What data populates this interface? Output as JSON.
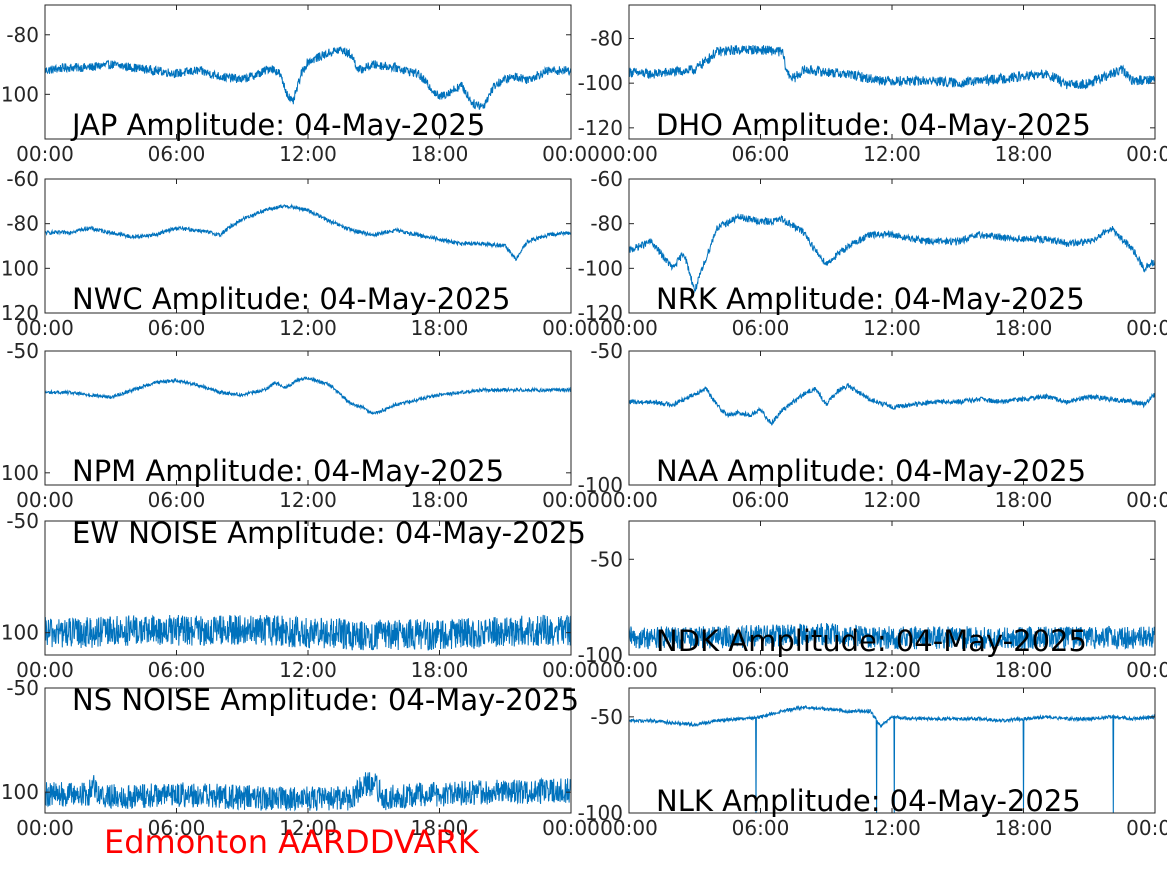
{
  "footer": "Edmonton AARDDVARK",
  "colors": {
    "line": "#0072bd",
    "axes": "#262626",
    "text": "#000000",
    "footer": "#ff0000"
  },
  "chart_data": [
    {
      "type": "line",
      "station": "JAP",
      "title": "JAP Amplitude: 04-May-2025",
      "xlim": [
        0,
        24
      ],
      "x_unit": "hours UTC",
      "xticks": [
        "00:00",
        "06:00",
        "12:00",
        "18:00",
        "00:00"
      ],
      "ylim": [
        -115,
        -70
      ],
      "yticks": [
        -80,
        -100
      ],
      "ytick_labels": [
        "-80",
        "-100"
      ],
      "series": [
        {
          "x": [
            0,
            1,
            2,
            3,
            4,
            5,
            6,
            7,
            8,
            9,
            9.8,
            10.3,
            10.7,
            11,
            11.3,
            11.7,
            12,
            13,
            13.5,
            14,
            14.3,
            15,
            16,
            17,
            17.5,
            18,
            18.5,
            19,
            19.5,
            20,
            20.5,
            21,
            21.5,
            22,
            23,
            24
          ],
          "y": [
            -92,
            -91,
            -91,
            -90,
            -91,
            -92,
            -93,
            -92,
            -94,
            -95,
            -93,
            -91,
            -93,
            -99,
            -103,
            -93,
            -89,
            -86,
            -85,
            -87,
            -92,
            -90,
            -91,
            -93,
            -97,
            -101,
            -99,
            -97,
            -103,
            -104,
            -97,
            -95,
            -94,
            -95,
            -92,
            -92
          ],
          "noise": 1.5
        }
      ]
    },
    {
      "type": "line",
      "station": "DHO",
      "title": "DHO Amplitude: 04-May-2025",
      "xlim": [
        0,
        24
      ],
      "x_unit": "hours UTC",
      "xticks": [
        "00:00",
        "06:00",
        "12:00",
        "18:00",
        "00:00"
      ],
      "ylim": [
        -125,
        -65
      ],
      "yticks": [
        -80,
        -100,
        -120
      ],
      "ytick_labels": [
        "-80",
        "-100",
        "-120"
      ],
      "series": [
        {
          "x": [
            0,
            1,
            2,
            3,
            3.5,
            4,
            5,
            6,
            7,
            7.2,
            7.5,
            8,
            9,
            10,
            11,
            12,
            13,
            14,
            15,
            16,
            17,
            18,
            19,
            19.5,
            20,
            21,
            22,
            22.5,
            23,
            24
          ],
          "y": [
            -95,
            -96,
            -95,
            -94,
            -90,
            -86,
            -85,
            -85,
            -86,
            -95,
            -98,
            -94,
            -95,
            -96,
            -98,
            -99,
            -99,
            -99,
            -100,
            -99,
            -98,
            -97,
            -96,
            -98,
            -101,
            -100,
            -96,
            -94,
            -99,
            -98
          ],
          "noise": 2.2
        }
      ]
    },
    {
      "type": "line",
      "station": "NWC",
      "title": "NWC Amplitude: 04-May-2025",
      "xlim": [
        0,
        24
      ],
      "x_unit": "hours UTC",
      "xticks": [
        "00:00",
        "06:00",
        "12:00",
        "18:00",
        "00:00"
      ],
      "ylim": [
        -120,
        -60
      ],
      "yticks": [
        -60,
        -80,
        -100,
        -120
      ],
      "ytick_labels": [
        "-60",
        "-80",
        "-100",
        "-120"
      ],
      "series": [
        {
          "x": [
            0,
            1,
            2,
            3,
            4,
            5,
            6,
            7,
            8,
            8.5,
            9,
            10,
            11,
            12,
            13,
            14,
            15,
            16,
            17,
            18,
            19,
            20,
            21,
            21.5,
            22,
            23,
            24
          ],
          "y": [
            -84,
            -84,
            -82,
            -84,
            -86,
            -85,
            -82,
            -83,
            -85,
            -81,
            -78,
            -74,
            -72,
            -74,
            -79,
            -83,
            -85,
            -83,
            -85,
            -87,
            -89,
            -89,
            -90,
            -96,
            -88,
            -85,
            -84
          ],
          "noise": 0.9
        }
      ]
    },
    {
      "type": "line",
      "station": "NRK",
      "title": "NRK Amplitude: 04-May-2025",
      "xlim": [
        0,
        24
      ],
      "x_unit": "hours UTC",
      "xticks": [
        "00:00",
        "06:00",
        "12:00",
        "18:00",
        "00:00"
      ],
      "ylim": [
        -120,
        -60
      ],
      "yticks": [
        -60,
        -80,
        -100,
        -120
      ],
      "ytick_labels": [
        "-60",
        "-80",
        "-100",
        "-120"
      ],
      "series": [
        {
          "x": [
            0,
            1,
            2,
            2.5,
            3,
            3.5,
            4,
            5,
            6,
            6.5,
            7,
            8,
            8.5,
            9,
            10,
            11,
            12,
            13,
            14,
            15,
            16,
            17,
            18,
            19,
            20,
            21,
            22,
            23,
            23.5,
            24
          ],
          "y": [
            -92,
            -88,
            -100,
            -93,
            -110,
            -96,
            -82,
            -77,
            -79,
            -79,
            -78,
            -84,
            -92,
            -98,
            -90,
            -85,
            -85,
            -87,
            -88,
            -88,
            -85,
            -86,
            -87,
            -87,
            -89,
            -88,
            -82,
            -92,
            -100,
            -97
          ],
          "noise": 1.6
        }
      ]
    },
    {
      "type": "line",
      "station": "NPM",
      "title": "NPM Amplitude: 04-May-2025",
      "xlim": [
        0,
        24
      ],
      "x_unit": "hours UTC",
      "xticks": [
        "00:00",
        "06:00",
        "12:00",
        "18:00",
        "00:00"
      ],
      "ylim": [
        -105,
        -50
      ],
      "yticks": [
        -50,
        -100
      ],
      "ytick_labels": [
        "-50",
        "-100"
      ],
      "series": [
        {
          "x": [
            0,
            1,
            2,
            3,
            4,
            5,
            6,
            7,
            8,
            9,
            10,
            10.5,
            11,
            11.5,
            12,
            13,
            13.5,
            14,
            14.5,
            15,
            16,
            17,
            18,
            19,
            20,
            21,
            22,
            23,
            24
          ],
          "y": [
            -67,
            -67,
            -68,
            -69,
            -66,
            -63,
            -62,
            -64,
            -67,
            -68,
            -66,
            -63,
            -65,
            -62,
            -61,
            -64,
            -68,
            -72,
            -73,
            -76,
            -72,
            -70,
            -68,
            -67,
            -66,
            -66,
            -66,
            -66,
            -66
          ],
          "noise": 0.7
        }
      ]
    },
    {
      "type": "line",
      "station": "NAA",
      "title": "NAA Amplitude: 04-May-2025",
      "xlim": [
        0,
        24
      ],
      "x_unit": "hours UTC",
      "xticks": [
        "00:00",
        "06:00",
        "12:00",
        "18:00",
        "00:00"
      ],
      "ylim": [
        -100,
        -50
      ],
      "yticks": [
        -50,
        -100
      ],
      "ytick_labels": [
        "-50",
        "-100"
      ],
      "series": [
        {
          "x": [
            0,
            1,
            2,
            3,
            3.5,
            4,
            4.5,
            5,
            5.5,
            6,
            6.5,
            7,
            8,
            8.5,
            9,
            9.5,
            10,
            11,
            12,
            13,
            14,
            15,
            16,
            17,
            18,
            19,
            20,
            21,
            22,
            23,
            23.5,
            24
          ],
          "y": [
            -69,
            -69,
            -70,
            -66,
            -64,
            -70,
            -74,
            -73,
            -74,
            -72,
            -77,
            -72,
            -66,
            -64,
            -70,
            -65,
            -63,
            -68,
            -71,
            -70,
            -69,
            -69,
            -68,
            -69,
            -68,
            -67,
            -69,
            -67,
            -68,
            -69,
            -70,
            -66
          ],
          "noise": 0.9
        }
      ]
    },
    {
      "type": "line",
      "station": "EW NOISE",
      "title": "EW NOISE Amplitude: 04-May-2025",
      "xlim": [
        0,
        24
      ],
      "x_unit": "hours UTC",
      "xticks": [
        "00:00",
        "06:00",
        "12:00",
        "18:00",
        "00:00"
      ],
      "ylim": [
        -110,
        -50
      ],
      "yticks": [
        -50,
        -100
      ],
      "ytick_labels": [
        "-50",
        "-100"
      ],
      "series": [
        {
          "x": [
            0,
            2,
            4,
            6,
            8,
            10,
            12,
            14,
            16,
            18,
            20,
            22,
            24
          ],
          "y": [
            -100,
            -100,
            -99,
            -99,
            -99,
            -99,
            -100,
            -101,
            -101,
            -101,
            -100,
            -99,
            -99
          ],
          "noise": 7
        }
      ]
    },
    {
      "type": "line",
      "station": "NDK",
      "title": "NDK Amplitude: 04-May-2025",
      "xlim": [
        0,
        24
      ],
      "x_unit": "hours UTC",
      "xticks": [
        "00:00",
        "06:00",
        "12:00",
        "18:00",
        "00:00"
      ],
      "ylim": [
        -100,
        -30
      ],
      "yticks": [
        -50,
        -100
      ],
      "ytick_labels": [
        "-50",
        "-100"
      ],
      "series": [
        {
          "x": [
            0,
            3,
            6,
            9,
            12,
            15,
            18,
            21,
            24
          ],
          "y": [
            -91,
            -91,
            -90,
            -89,
            -91,
            -91,
            -91,
            -91,
            -91
          ],
          "noise": 6
        }
      ]
    },
    {
      "type": "line",
      "station": "NS NOISE",
      "title": "NS NOISE Amplitude: 04-May-2025",
      "xlim": [
        0,
        24
      ],
      "x_unit": "hours UTC",
      "xticks": [
        "00:00",
        "06:00",
        "12:00",
        "18:00",
        "00:00"
      ],
      "ylim": [
        -110,
        -50
      ],
      "yticks": [
        -50,
        -100
      ],
      "ytick_labels": [
        "-50",
        "-100"
      ],
      "series": [
        {
          "x": [
            0,
            2,
            2.2,
            2.5,
            4,
            6,
            8,
            10,
            12,
            14,
            14.5,
            15,
            15.5,
            16,
            18,
            20,
            22,
            24
          ],
          "y": [
            -101,
            -101,
            -95,
            -102,
            -102,
            -101,
            -102,
            -103,
            -103,
            -103,
            -96,
            -96,
            -103,
            -102,
            -101,
            -100,
            -100,
            -99
          ],
          "noise": 6
        }
      ]
    },
    {
      "type": "line",
      "station": "NLK",
      "title": "NLK Amplitude: 04-May-2025",
      "xlim": [
        0,
        24
      ],
      "x_unit": "hours UTC",
      "xticks": [
        "00:00",
        "06:00",
        "12:00",
        "18:00",
        "00:00"
      ],
      "ylim": [
        -100,
        -35
      ],
      "yticks": [
        -50,
        -100
      ],
      "ytick_labels": [
        "-50",
        "-100"
      ],
      "series": [
        {
          "x": [
            0,
            1,
            2,
            3,
            4,
            5,
            6,
            7,
            8,
            9,
            10,
            11,
            11.5,
            12,
            13,
            14,
            15,
            16,
            17,
            18,
            19,
            20,
            21,
            22,
            23,
            24
          ],
          "y": [
            -52,
            -52,
            -53,
            -54,
            -52,
            -51,
            -50,
            -47,
            -45,
            -46,
            -47,
            -47,
            -55,
            -50,
            -51,
            -51,
            -51,
            -51,
            -52,
            -51,
            -50,
            -51,
            -51,
            -50,
            -51,
            -50
          ],
          "noise": 0.9,
          "dropouts": [
            5.8,
            11.3,
            12.1,
            18,
            22.1
          ]
        }
      ]
    }
  ]
}
